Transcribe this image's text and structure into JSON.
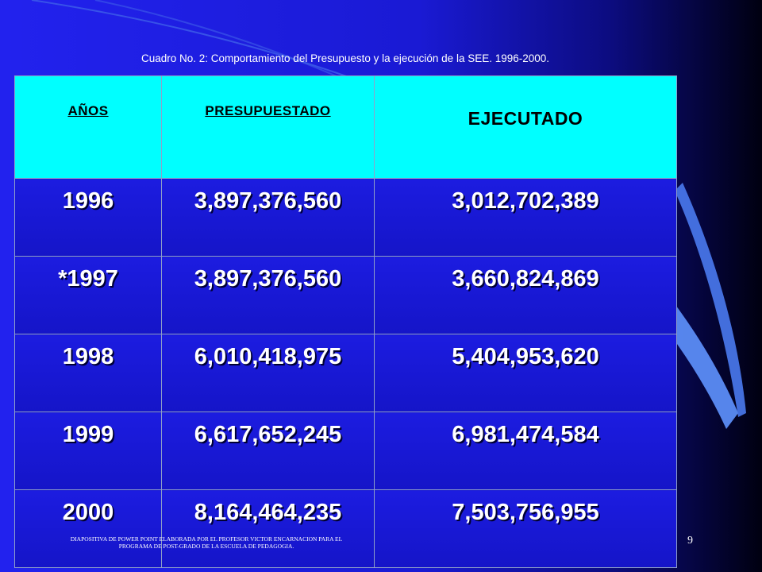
{
  "caption": "Cuadro No. 2: Comportamiento del Presupuesto y la ejecución de la SEE. 1996-2000.",
  "table": {
    "headers": [
      "AÑOS",
      "PRESUPUESTADO",
      "EJECUTADO"
    ],
    "rows": [
      {
        "year": "1996",
        "presupuestado": "3,897,376,560",
        "ejecutado": "3,012,702,389"
      },
      {
        "year": "*1997",
        "presupuestado": "3,897,376,560",
        "ejecutado": "3,660,824,869"
      },
      {
        "year": "1998",
        "presupuestado": "6,010,418,975",
        "ejecutado": "5,404,953,620"
      },
      {
        "year": "1999",
        "presupuestado": "6,617,652,245",
        "ejecutado": "6,981,474,584"
      },
      {
        "year": "2000",
        "presupuestado": "8,164,464,235",
        "ejecutado": "7,503,756,955"
      }
    ]
  },
  "footer": "DIAPOSITIVA DE POWER POINT ELABORADA POR EL PROFESOR VICTOR ENCARNACION PARA EL PROGRAMA DE POST-GRADO DE LA ESCUELA DE PEDAGOGIA.",
  "page_number": "9",
  "colors": {
    "background": "#1a1ad4",
    "header_fill": "#00ffff",
    "accent_sweep": "#4a7af0"
  }
}
